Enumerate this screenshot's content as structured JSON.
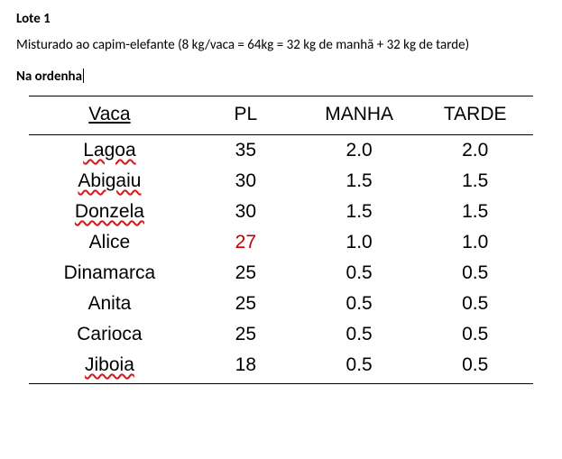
{
  "heading": "Lote 1",
  "body_text": "Misturado ao capim-elefante (8 kg/vaca = 64kg = 32 kg de manhã + 32 kg de tarde)",
  "sub_heading": "Na ordenha",
  "table": {
    "type": "table",
    "columns": [
      "Vaca",
      "PL",
      "MANHA",
      "TARDE"
    ],
    "column_widths_pct": [
      32,
      22,
      23,
      23
    ],
    "header_fontsize": 21,
    "cell_fontsize": 21,
    "border_color": "#000000",
    "border_width": 1.5,
    "text_color": "#000000",
    "highlight_color": "#c00000",
    "spellcheck_color": "#d7191c",
    "rows": [
      {
        "vaca": "Lagoa",
        "pl": "35",
        "manha": "2.0",
        "tarde": "2.0",
        "spell": true,
        "pl_red": false
      },
      {
        "vaca": "Abigaiu",
        "pl": "30",
        "manha": "1.5",
        "tarde": "1.5",
        "spell": true,
        "pl_red": false
      },
      {
        "vaca": "Donzela",
        "pl": "30",
        "manha": "1.5",
        "tarde": "1.5",
        "spell": true,
        "pl_red": false
      },
      {
        "vaca": "Alice",
        "pl": "27",
        "manha": "1.0",
        "tarde": "1.0",
        "spell": false,
        "pl_red": true
      },
      {
        "vaca": "Dinamarca",
        "pl": "25",
        "manha": "0.5",
        "tarde": "0.5",
        "spell": false,
        "pl_red": false
      },
      {
        "vaca": "Anita",
        "pl": "25",
        "manha": "0.5",
        "tarde": "0.5",
        "spell": false,
        "pl_red": false
      },
      {
        "vaca": "Carioca",
        "pl": "25",
        "manha": "0.5",
        "tarde": "0.5",
        "spell": false,
        "pl_red": false
      },
      {
        "vaca": "Jiboia",
        "pl": "18",
        "manha": "0.5",
        "tarde": "0.5",
        "spell": true,
        "pl_red": false
      }
    ]
  }
}
